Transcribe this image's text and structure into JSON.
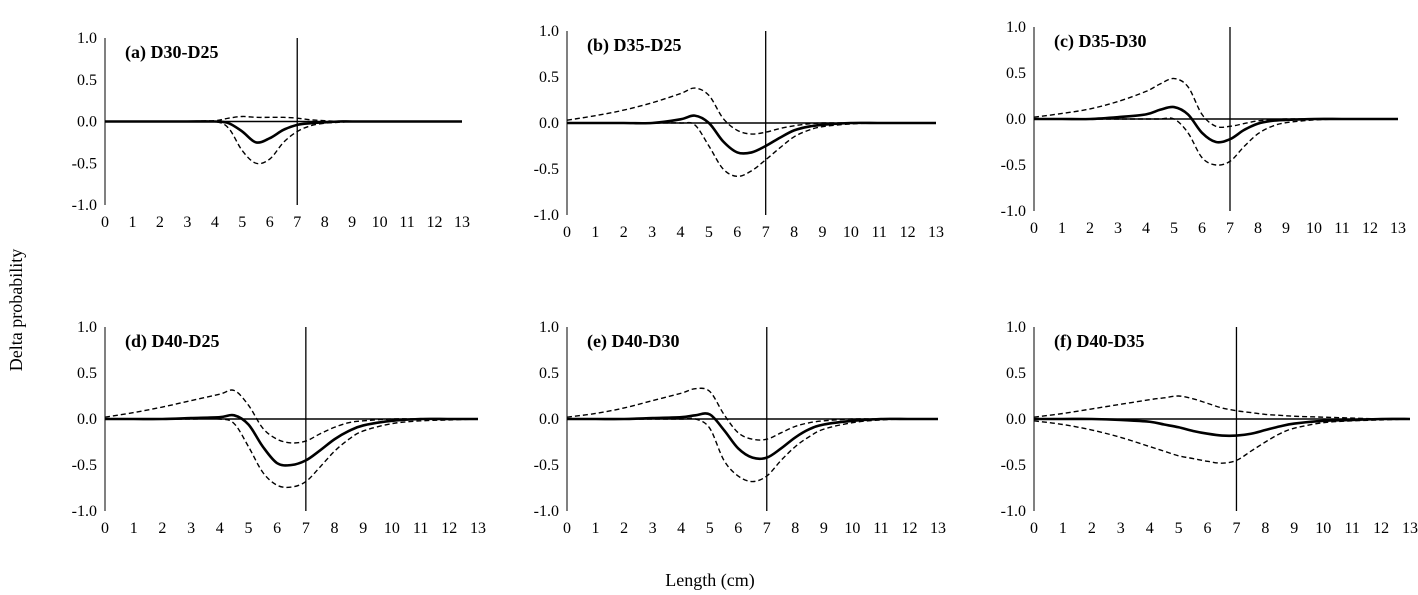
{
  "chart_data": {
    "type": "line",
    "xlabel": "Length (cm)",
    "ylabel": "Delta probability",
    "xlim": [
      0,
      13
    ],
    "ylim": [
      -1.0,
      1.0
    ],
    "xticks": [
      "0",
      "1",
      "2",
      "3",
      "4",
      "5",
      "6",
      "7",
      "8",
      "9",
      "10",
      "11",
      "12",
      "13"
    ],
    "yticks": [
      "1.0",
      "0.5",
      "0.0",
      "-0.5",
      "-1.0"
    ],
    "grid": false,
    "reference_line_x": 7,
    "panels": [
      {
        "title": "(a) D30-D25",
        "x": [
          0,
          1,
          2,
          3,
          4,
          4.5,
          5,
          5.5,
          6,
          6.5,
          7,
          7.5,
          8,
          8.5,
          9,
          10,
          11,
          12,
          13
        ],
        "series": [
          {
            "style": "solid",
            "values": [
              0,
              0,
              0,
              0,
              0,
              -0.02,
              -0.12,
              -0.25,
              -0.2,
              -0.1,
              -0.04,
              -0.02,
              -0.01,
              0,
              0,
              0,
              0,
              0,
              0
            ]
          },
          {
            "style": "dashed",
            "values": [
              0,
              0,
              0,
              0,
              0.01,
              0.04,
              0.06,
              0.05,
              0.05,
              0.05,
              0.04,
              0.02,
              0.01,
              0,
              0,
              0,
              0,
              0,
              0
            ]
          },
          {
            "style": "dashed",
            "values": [
              0,
              0,
              0,
              0,
              0,
              -0.08,
              -0.35,
              -0.5,
              -0.45,
              -0.25,
              -0.12,
              -0.05,
              -0.02,
              -0.01,
              0,
              0,
              0,
              0,
              0
            ]
          }
        ]
      },
      {
        "title": "(b) D35-D25",
        "x": [
          0,
          1,
          2,
          3,
          4,
          4.5,
          5,
          5.5,
          6,
          6.5,
          7,
          7.5,
          8,
          8.5,
          9,
          10,
          11,
          12,
          13
        ],
        "series": [
          {
            "style": "solid",
            "values": [
              0,
              0,
              0,
              0,
              0.04,
              0.08,
              0,
              -0.2,
              -0.32,
              -0.32,
              -0.25,
              -0.16,
              -0.08,
              -0.04,
              -0.02,
              0,
              0,
              0,
              0
            ]
          },
          {
            "style": "dashed",
            "values": [
              0.03,
              0.08,
              0.14,
              0.22,
              0.32,
              0.38,
              0.3,
              0.05,
              -0.08,
              -0.12,
              -0.1,
              -0.06,
              -0.03,
              -0.01,
              0,
              0,
              0,
              0,
              0
            ]
          },
          {
            "style": "dashed",
            "values": [
              0,
              0,
              0,
              0,
              0,
              -0.02,
              -0.25,
              -0.5,
              -0.58,
              -0.52,
              -0.4,
              -0.27,
              -0.15,
              -0.08,
              -0.04,
              -0.01,
              0,
              0,
              0
            ]
          }
        ]
      },
      {
        "title": "(c) D35-D30",
        "x": [
          0,
          1,
          2,
          3,
          4,
          4.5,
          5,
          5.5,
          6,
          6.5,
          7,
          7.5,
          8,
          8.5,
          9,
          10,
          11,
          12,
          13
        ],
        "series": [
          {
            "style": "solid",
            "values": [
              0,
              0,
              0,
              0.02,
              0.05,
              0.1,
              0.13,
              0.05,
              -0.15,
              -0.25,
              -0.22,
              -0.12,
              -0.05,
              -0.02,
              -0.01,
              0,
              0,
              0,
              0
            ]
          },
          {
            "style": "dashed",
            "values": [
              0.02,
              0.06,
              0.11,
              0.19,
              0.3,
              0.38,
              0.44,
              0.35,
              0.05,
              -0.08,
              -0.08,
              -0.05,
              -0.02,
              -0.01,
              0,
              0,
              0,
              0,
              0
            ]
          },
          {
            "style": "dashed",
            "values": [
              0,
              0,
              0,
              0,
              0,
              0,
              0,
              -0.15,
              -0.42,
              -0.5,
              -0.46,
              -0.3,
              -0.16,
              -0.08,
              -0.04,
              -0.01,
              0,
              0,
              0
            ]
          }
        ]
      },
      {
        "title": "(d) D40-D25",
        "x": [
          0,
          1,
          2,
          3,
          4,
          4.5,
          5,
          5.5,
          6,
          6.5,
          7,
          7.5,
          8,
          8.5,
          9,
          10,
          11,
          12,
          13
        ],
        "series": [
          {
            "style": "solid",
            "values": [
              0,
              0,
              0,
              0.01,
              0.02,
              0.04,
              -0.06,
              -0.3,
              -0.48,
              -0.5,
              -0.45,
              -0.34,
              -0.22,
              -0.13,
              -0.07,
              -0.02,
              0,
              0,
              0
            ]
          },
          {
            "style": "dashed",
            "values": [
              0.02,
              0.07,
              0.13,
              0.2,
              0.27,
              0.31,
              0.15,
              -0.1,
              -0.22,
              -0.26,
              -0.24,
              -0.16,
              -0.09,
              -0.04,
              -0.02,
              0,
              0,
              0,
              0
            ]
          },
          {
            "style": "dashed",
            "values": [
              0,
              0,
              0,
              0,
              0,
              -0.05,
              -0.3,
              -0.58,
              -0.72,
              -0.74,
              -0.68,
              -0.52,
              -0.35,
              -0.22,
              -0.13,
              -0.05,
              -0.02,
              -0.01,
              0
            ]
          }
        ]
      },
      {
        "title": "(e) D40-D30",
        "x": [
          0,
          1,
          2,
          3,
          4,
          4.5,
          5,
          5.5,
          6,
          6.5,
          7,
          7.5,
          8,
          8.5,
          9,
          10,
          11,
          12,
          13
        ],
        "series": [
          {
            "style": "solid",
            "values": [
              0,
              0,
              0,
              0.01,
              0.02,
              0.04,
              0.05,
              -0.12,
              -0.32,
              -0.42,
              -0.42,
              -0.32,
              -0.2,
              -0.11,
              -0.06,
              -0.02,
              0,
              0,
              0
            ]
          },
          {
            "style": "dashed",
            "values": [
              0.02,
              0.06,
              0.12,
              0.2,
              0.28,
              0.33,
              0.3,
              0.05,
              -0.15,
              -0.22,
              -0.22,
              -0.15,
              -0.08,
              -0.04,
              -0.02,
              0,
              0,
              0,
              0
            ]
          },
          {
            "style": "dashed",
            "values": [
              0,
              0,
              0,
              0,
              0,
              0,
              -0.1,
              -0.45,
              -0.62,
              -0.68,
              -0.62,
              -0.45,
              -0.3,
              -0.19,
              -0.11,
              -0.04,
              -0.01,
              0,
              0
            ]
          }
        ]
      },
      {
        "title": "(f) D40-D35",
        "x": [
          0,
          1,
          2,
          3,
          4,
          4.5,
          5,
          5.5,
          6,
          6.5,
          7,
          7.5,
          8,
          8.5,
          9,
          10,
          11,
          12,
          13
        ],
        "series": [
          {
            "style": "solid",
            "values": [
              0,
              0,
              0,
              -0.01,
              -0.03,
              -0.06,
              -0.09,
              -0.13,
              -0.16,
              -0.18,
              -0.18,
              -0.16,
              -0.12,
              -0.08,
              -0.05,
              -0.02,
              -0.01,
              0,
              0
            ]
          },
          {
            "style": "dashed",
            "values": [
              0.02,
              0.06,
              0.11,
              0.16,
              0.21,
              0.23,
              0.25,
              0.22,
              0.17,
              0.12,
              0.09,
              0.07,
              0.05,
              0.04,
              0.03,
              0.02,
              0.01,
              0,
              0
            ]
          },
          {
            "style": "dashed",
            "values": [
              -0.02,
              -0.06,
              -0.12,
              -0.2,
              -0.3,
              -0.35,
              -0.4,
              -0.43,
              -0.46,
              -0.48,
              -0.45,
              -0.35,
              -0.25,
              -0.16,
              -0.1,
              -0.04,
              -0.02,
              -0.01,
              0
            ]
          }
        ]
      }
    ]
  }
}
